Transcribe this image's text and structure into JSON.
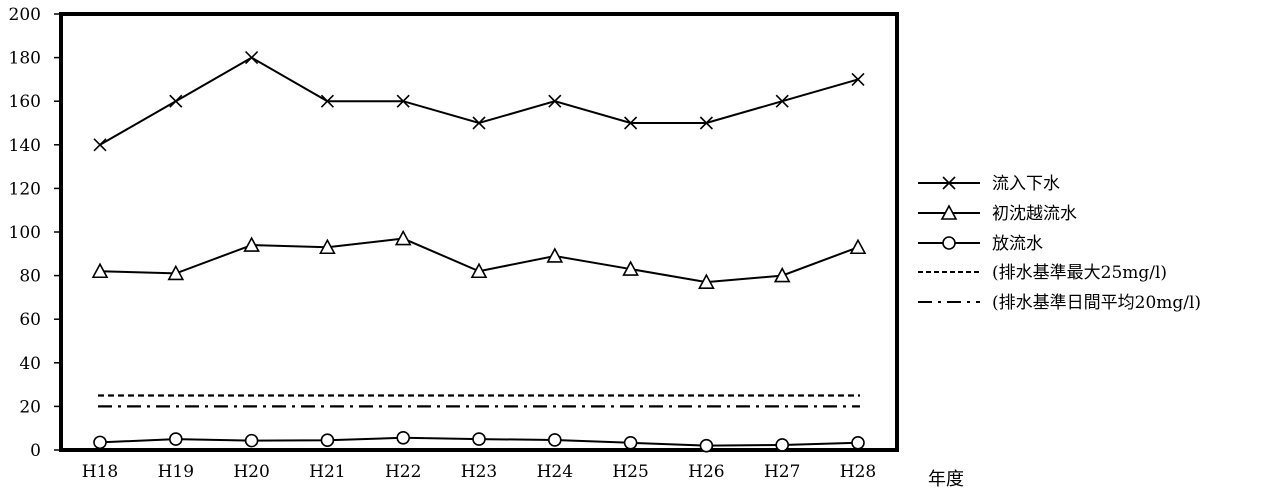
{
  "chart_data": {
    "type": "line",
    "categories": [
      "H18",
      "H19",
      "H20",
      "H21",
      "H22",
      "H23",
      "H24",
      "H25",
      "H26",
      "H27",
      "H28"
    ],
    "xlabel": "年度",
    "ylabel": "",
    "ylim": [
      0,
      200
    ],
    "yticks": [
      0,
      20,
      40,
      60,
      80,
      100,
      120,
      140,
      160,
      180,
      200
    ],
    "grid": false,
    "legend_position": "right",
    "series": [
      {
        "name": "流入下水",
        "marker": "cross",
        "line": "solid",
        "values": [
          140,
          160,
          180,
          160,
          160,
          150,
          160,
          150,
          150,
          160,
          170
        ]
      },
      {
        "name": "初沈越流水",
        "marker": "triangle",
        "line": "solid",
        "values": [
          82,
          81,
          94,
          93,
          97,
          82,
          89,
          83,
          77,
          80,
          93
        ]
      },
      {
        "name": "放流水",
        "marker": "circle",
        "line": "solid",
        "values": [
          3.5,
          5,
          4.3,
          4.5,
          5.6,
          5,
          4.6,
          3.3,
          2,
          2.3,
          3.3
        ]
      },
      {
        "name": "(排水基準最大25mg/l)",
        "marker": "none",
        "line": "dashed",
        "values": [
          25,
          25,
          25,
          25,
          25,
          25,
          25,
          25,
          25,
          25,
          25
        ]
      },
      {
        "name": "(排水基準日間平均20mg/l)",
        "marker": "none",
        "line": "dashdot",
        "values": [
          20,
          20,
          20,
          20,
          20,
          20,
          20,
          20,
          20,
          20,
          20
        ]
      }
    ]
  }
}
